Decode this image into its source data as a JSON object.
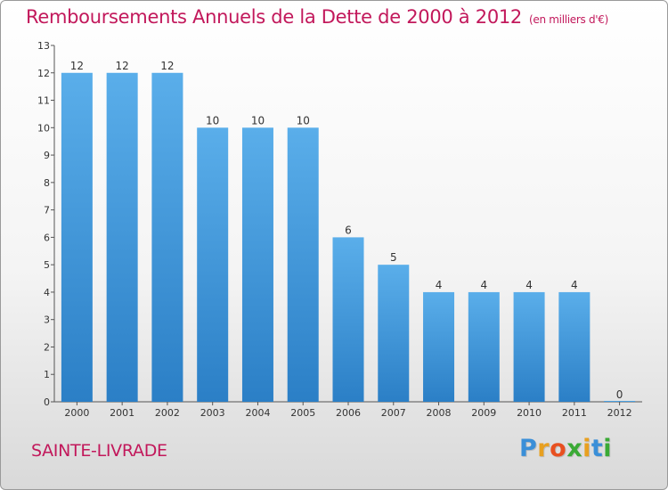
{
  "chart_data": {
    "type": "bar",
    "title": "Remboursements Annuels de la Dette de 2000 à 2012",
    "unit_label": "(en milliers d'€)",
    "categories": [
      "2000",
      "2001",
      "2002",
      "2003",
      "2004",
      "2005",
      "2006",
      "2007",
      "2008",
      "2009",
      "2010",
      "2011",
      "2012"
    ],
    "values": [
      12,
      12,
      12,
      10,
      10,
      10,
      6,
      5,
      4,
      4,
      4,
      4,
      0
    ],
    "ylim": [
      0,
      13
    ],
    "yticks": [
      "0",
      "1",
      "2",
      "3",
      "4",
      "5",
      "6",
      "7",
      "8",
      "9",
      "10",
      "11",
      "12",
      "13"
    ],
    "grid": false,
    "bar_color": "#4a9fe0"
  },
  "footer": {
    "city": "SAINTE-LIVRADE",
    "brand": "Proxiti"
  },
  "colors": {
    "title": "#c2185b",
    "brand_letters": [
      "#3a8fd8",
      "#e8a020",
      "#e85020",
      "#3aaa35",
      "#e8a020",
      "#3a8fd8",
      "#3aaa35"
    ]
  }
}
